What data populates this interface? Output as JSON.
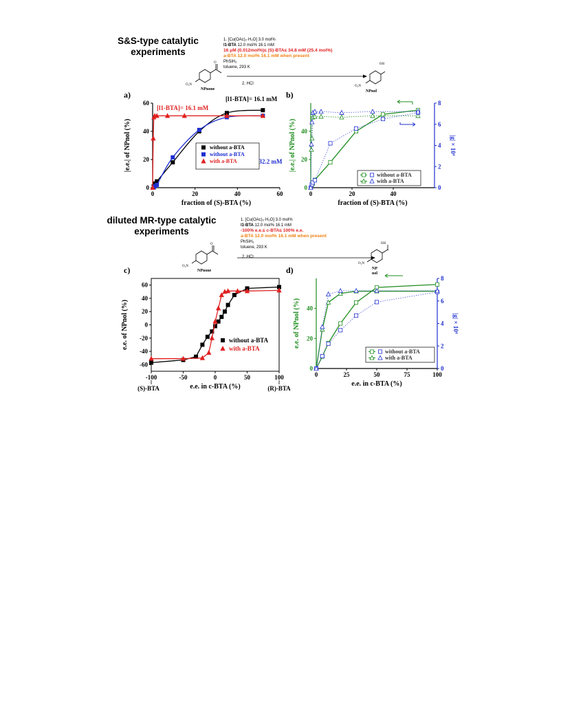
{
  "header1": [
    "S&S-type catalytic",
    "experiments"
  ],
  "header2": [
    "diluted MR-type catalytic",
    "experiments"
  ],
  "conditions1": {
    "l1": "1. [Cu(OAc)₂·H₂O] 3.0 mol%",
    "l2b": "l1-BTA",
    "l2": " 12.0 mol% 16.1 mM",
    "l3": "16 μM (0.012mol%)≤ (S)-BTA≤ 34.8 mM (25.4 mol%)",
    "l4": "a-BTA 12.0 mol% 16.1 mM when present",
    "l5": "PhSiH₃",
    "l6": "toluene, 293 K",
    "l7": "2. HCl"
  },
  "conditions2": {
    "l1": "1. [Cu(OAc)₂·H₂O] 3.0 mol%",
    "l2b": "l1-BTA",
    "l2": " 12.0 mol% 16.1 mM",
    "l3": "-100% e.e.≤ c-BTA≤ 100% e.e.",
    "l4": "a-BTA 12.0 mol% 16.1 mM when present",
    "l5": "PhSiH₃",
    "l6": "toluene, 293 K",
    "l7": "2. HCl"
  },
  "molecules1": {
    "sm": "NPnone",
    "prod": "NPnol",
    "oh": "OH",
    "o": "O",
    "no2": "O₂N"
  },
  "molecules2": {
    "sm": "NPnone",
    "prod1": "NP",
    "prod2": "nol",
    "oh": "OH",
    "o": "O",
    "no2": "O₂N"
  },
  "colors": {
    "black": "#000000",
    "blue": "#1f2fd0",
    "red": "#e02020",
    "green": "#1e8c1e",
    "blueDot": "#4a5ad8"
  },
  "chart_data": [
    {
      "id": "a",
      "panel_label": "a)",
      "type": "line",
      "xlabel": "fraction of (S)-BTA (%)",
      "ylabel": "|e.e.| of NPnol (%)",
      "xlim": [
        0,
        60
      ],
      "ylim": [
        0,
        60
      ],
      "xticks": [
        0,
        20,
        40,
        60
      ],
      "yticks": [
        0,
        20,
        40,
        60
      ],
      "annotations": [
        "[l1-BTA]= 16.1 mM",
        "[l1-BTA]= 16.1 mM",
        "[l1-BTA] = 32.2 mM"
      ],
      "legend": [
        "without a-BTA",
        "without a-BTA",
        "with a-BTA"
      ],
      "series": [
        {
          "name": "without a-BTA",
          "color": "black",
          "marker": "square",
          "x": [
            0.5,
            1,
            2,
            9.5,
            22,
            35,
            52
          ],
          "y": [
            1,
            3,
            4.5,
            18,
            40,
            53,
            55
          ]
        },
        {
          "name": "without a-BTA",
          "color": "blue",
          "marker": "square",
          "x": [
            0.5,
            1,
            2,
            9.5,
            22,
            35,
            52
          ],
          "y": [
            0,
            1,
            2,
            21.5,
            41,
            50,
            51
          ]
        },
        {
          "name": "with a-BTA",
          "color": "red",
          "marker": "triangle",
          "x": [
            0,
            0.3,
            0.6,
            1,
            2,
            7,
            15,
            35,
            52
          ],
          "y": [
            0,
            35,
            50,
            51,
            51,
            51,
            51,
            51,
            51
          ]
        }
      ]
    },
    {
      "id": "b",
      "panel_label": "b)",
      "type": "line",
      "xlabel": "fraction of (S)-BTA (%)",
      "ylabel": "|e.e.| of NPnol (%)",
      "y2label": "|g| × 10⁴",
      "xlim": [
        0,
        60
      ],
      "ylim": [
        0,
        60
      ],
      "y2lim": [
        0,
        8
      ],
      "xticks": [
        0,
        20,
        40
      ],
      "yticks": [
        0,
        20,
        40
      ],
      "y2ticks": [
        0,
        2,
        4,
        6,
        8
      ],
      "legend": [
        "without a-BTA",
        "with a-BTA"
      ],
      "series": [
        {
          "name": "without a-BTA",
          "color": "green",
          "marker": "square",
          "axis": "left",
          "x": [
            0,
            0.5,
            1,
            2,
            9.5,
            22,
            35,
            52
          ],
          "y": [
            0,
            2,
            3,
            5.5,
            18,
            40,
            52,
            55
          ]
        },
        {
          "name": "with a-BTA",
          "color": "green",
          "marker": "triangle",
          "axis": "left",
          "dotted": true,
          "x": [
            0,
            0.3,
            0.6,
            1,
            2,
            5,
            15,
            30,
            52
          ],
          "y": [
            0,
            27,
            35,
            50,
            50.5,
            50.5,
            50,
            51,
            51
          ]
        },
        {
          "name": "without a-BTA",
          "color": "blue",
          "marker": "square",
          "axis": "right",
          "dotted": true,
          "x": [
            0,
            0.5,
            1,
            2,
            9.5,
            22,
            35,
            52
          ],
          "y": [
            0,
            0.3,
            0.5,
            0.7,
            4.2,
            5.6,
            6.5,
            7.1
          ]
        },
        {
          "name": "with a-BTA",
          "color": "blue",
          "marker": "triangle",
          "axis": "right",
          "dotted": true,
          "x": [
            0,
            0.3,
            0.6,
            1,
            2,
            5,
            15,
            30,
            52
          ],
          "y": [
            0,
            4.1,
            6.2,
            7.1,
            7.2,
            7.2,
            7.1,
            7.2,
            7.2
          ]
        }
      ]
    },
    {
      "id": "c",
      "panel_label": "c)",
      "type": "line",
      "xlabel": "e.e. in c-BTA (%)",
      "ylabel": "e.e. of NPnol (%)",
      "xlim": [
        -100,
        100
      ],
      "ylim": [
        -70,
        70
      ],
      "xticks": [
        -100,
        -50,
        0,
        50,
        100
      ],
      "yticks": [
        -60,
        -40,
        -20,
        0,
        20,
        40,
        60
      ],
      "end_labels": [
        "(S)-BTA",
        "(R)-BTA"
      ],
      "legend": [
        "without a-BTA",
        "with a-BTA"
      ],
      "series": [
        {
          "name": "without a-BTA",
          "color": "black",
          "marker": "square",
          "x": [
            -100,
            -50,
            -30,
            -20,
            -12,
            -5,
            0,
            5,
            10,
            15,
            20,
            30,
            50,
            100
          ],
          "y": [
            -57,
            -53,
            -48,
            -30,
            -18,
            -10,
            -2,
            5,
            12,
            20,
            30,
            45,
            55,
            57
          ]
        },
        {
          "name": "with a-BTA",
          "color": "red",
          "marker": "triangle",
          "x": [
            -100,
            -50,
            -20,
            -10,
            -5,
            0,
            5,
            10,
            15,
            20,
            35,
            50,
            100
          ],
          "y": [
            -51,
            -51,
            -50,
            -42,
            -20,
            5,
            25,
            45,
            50,
            51,
            51,
            51,
            52
          ]
        }
      ]
    },
    {
      "id": "d",
      "panel_label": "d)",
      "type": "line",
      "xlabel": "e.e. in c-BTA (%)",
      "ylabel": "e.e. of NPnol (%)",
      "y2label": "|g| × 10⁴",
      "xlim": [
        0,
        100
      ],
      "ylim": [
        0,
        60
      ],
      "y2lim": [
        0,
        8
      ],
      "xticks": [
        0,
        25,
        50,
        75,
        100
      ],
      "yticks": [
        0,
        20,
        40
      ],
      "y2ticks": [
        0,
        2,
        4,
        6,
        8
      ],
      "legend": [
        "without a-BTA",
        "with a-BTA"
      ],
      "series": [
        {
          "name": "without a-BTA",
          "color": "green",
          "marker": "square",
          "axis": "left",
          "x": [
            0,
            5,
            10,
            20,
            33,
            50,
            100
          ],
          "y": [
            0,
            8,
            17,
            30,
            44,
            54,
            56
          ]
        },
        {
          "name": "with a-BTA",
          "color": "green",
          "marker": "triangle",
          "axis": "left",
          "x": [
            0,
            5,
            10,
            20,
            33,
            50,
            100
          ],
          "y": [
            0,
            26,
            44,
            50,
            51.5,
            51.5,
            51.5
          ]
        },
        {
          "name": "without a-BTA",
          "color": "blue",
          "marker": "square",
          "axis": "right",
          "dotted": true,
          "x": [
            0,
            5,
            10,
            20,
            33,
            50,
            100
          ],
          "y": [
            0,
            1.1,
            2.2,
            3.4,
            4.7,
            5.9,
            6.8
          ]
        },
        {
          "name": "with a-BTA",
          "color": "blue",
          "marker": "triangle",
          "axis": "right",
          "dotted": true,
          "x": [
            0,
            5,
            10,
            20,
            33,
            50,
            100
          ],
          "y": [
            0,
            3.7,
            6.6,
            6.9,
            6.9,
            6.9,
            6.9
          ]
        }
      ]
    }
  ]
}
